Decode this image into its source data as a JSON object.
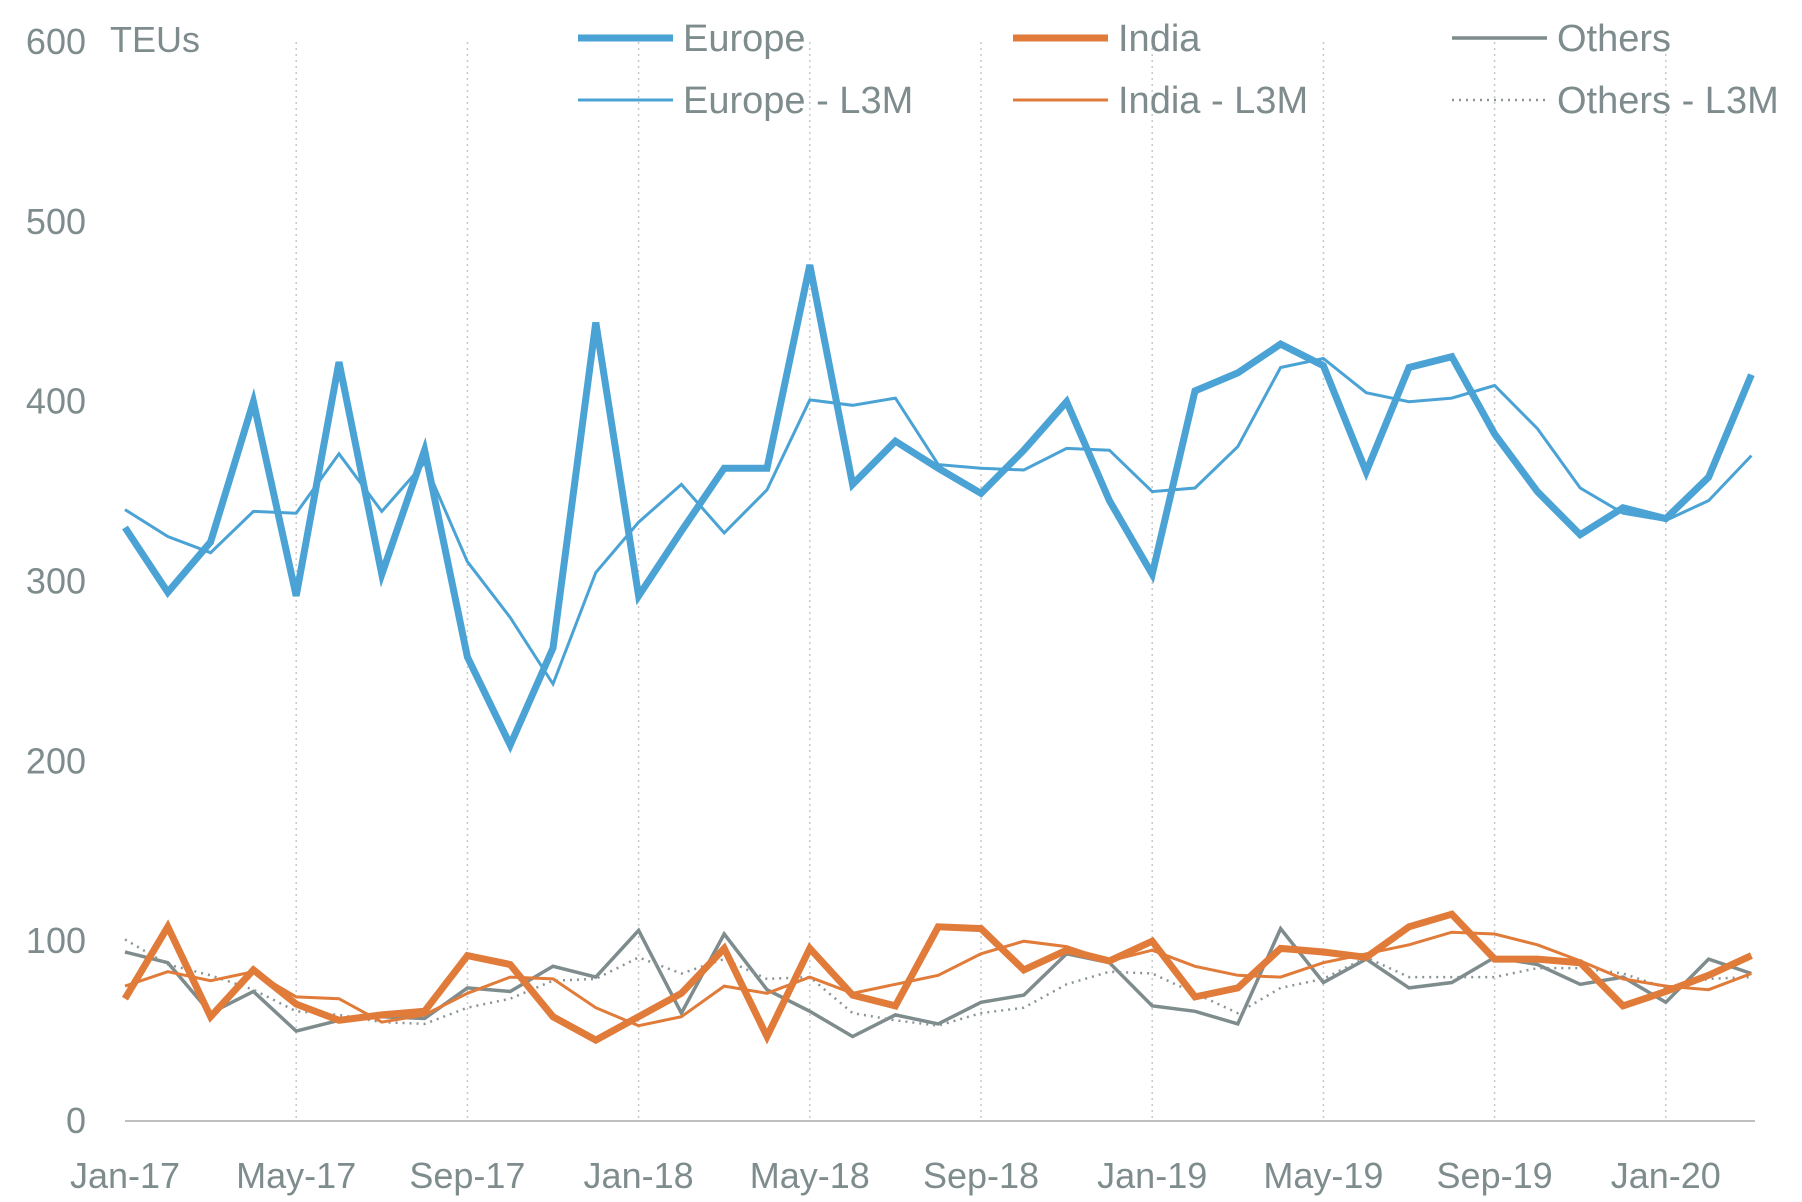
{
  "chart_data": {
    "type": "line",
    "title": "",
    "xlabel": "",
    "ylabel": "TEUs",
    "ylim": [
      0,
      600
    ],
    "yticks": [
      0,
      100,
      200,
      300,
      400,
      500,
      600
    ],
    "x_tick_labels": [
      "Jan-17",
      "May-17",
      "Sep-17",
      "Jan-18",
      "May-18",
      "Sep-18",
      "Jan-19",
      "May-19",
      "Sep-19",
      "Jan-20"
    ],
    "x_tick_every": 4,
    "grid": "vertical dotted at x tick labels",
    "legend_position": "top",
    "x": [
      "Jan-17",
      "Feb-17",
      "Mar-17",
      "Apr-17",
      "May-17",
      "Jun-17",
      "Jul-17",
      "Aug-17",
      "Sep-17",
      "Oct-17",
      "Nov-17",
      "Dec-17",
      "Jan-18",
      "Feb-18",
      "Mar-18",
      "Apr-18",
      "May-18",
      "Jun-18",
      "Jul-18",
      "Aug-18",
      "Sep-18",
      "Oct-18",
      "Nov-18",
      "Dec-18",
      "Jan-19",
      "Feb-19",
      "Mar-19",
      "Apr-19",
      "May-19",
      "Jun-19",
      "Jul-19",
      "Aug-19",
      "Sep-19",
      "Oct-19",
      "Nov-19",
      "Dec-19",
      "Jan-20",
      "Feb-20",
      "Mar-20"
    ],
    "series": [
      {
        "name": "Europe",
        "color": "#4aa3d4",
        "width": 7,
        "dash": "",
        "values": [
          330,
          294,
          322,
          400,
          292,
          422,
          304,
          373,
          258,
          209,
          263,
          444,
          292,
          328,
          363,
          363,
          476,
          354,
          378,
          363,
          349,
          373,
          400,
          345,
          304,
          406,
          416,
          432,
          420,
          361,
          419,
          425,
          382,
          350,
          326,
          341,
          335,
          358,
          415
        ]
      },
      {
        "name": "India",
        "color": "#e07b39",
        "width": 7,
        "dash": "",
        "values": [
          68,
          108,
          58,
          84,
          65,
          56,
          59,
          61,
          92,
          87,
          58,
          45,
          58,
          71,
          96,
          47,
          96,
          70,
          64,
          108,
          107,
          84,
          95,
          89,
          100,
          69,
          74,
          96,
          94,
          91,
          108,
          115,
          90,
          90,
          88,
          64,
          72,
          81,
          92
        ]
      },
      {
        "name": "Others",
        "color": "#7f8c8d",
        "width": 3.5,
        "dash": "",
        "values": [
          94,
          88,
          60,
          72,
          50,
          56,
          58,
          57,
          74,
          72,
          86,
          80,
          106,
          60,
          104,
          73,
          61,
          47,
          59,
          54,
          66,
          70,
          93,
          88,
          64,
          61,
          54,
          107,
          77,
          90,
          74,
          77,
          91,
          87,
          76,
          80,
          66,
          90,
          82
        ]
      },
      {
        "name": "Europe - L3M",
        "color": "#4aa3d4",
        "width": 3,
        "dash": "",
        "values": [
          340,
          325,
          316,
          339,
          338,
          371,
          339,
          366,
          311,
          280,
          243,
          305,
          333,
          354,
          327,
          351,
          401,
          398,
          402,
          365,
          363,
          362,
          374,
          373,
          350,
          352,
          375,
          419,
          424,
          405,
          400,
          402,
          409,
          385,
          352,
          338,
          334,
          345,
          370
        ]
      },
      {
        "name": "India - L3M",
        "color": "#e07b39",
        "width": 3,
        "dash": "",
        "values": [
          75,
          83,
          78,
          83,
          69,
          68,
          55,
          59,
          71,
          80,
          79,
          63,
          53,
          58,
          75,
          71,
          80,
          71,
          76,
          81,
          93,
          100,
          97,
          89,
          95,
          86,
          81,
          80,
          88,
          93,
          98,
          105,
          104,
          98,
          89,
          79,
          75,
          73,
          82
        ]
      },
      {
        "name": "Others - L3M",
        "color": "#8a9497",
        "width": 2.5,
        "dash": "2,5",
        "values": [
          101,
          87,
          81,
          73,
          61,
          59,
          55,
          54,
          63,
          68,
          78,
          79,
          91,
          82,
          90,
          79,
          80,
          60,
          56,
          53,
          60,
          63,
          76,
          83,
          82,
          71,
          60,
          74,
          79,
          91,
          80,
          80,
          80,
          85,
          85,
          82,
          74,
          79,
          80
        ]
      }
    ],
    "legend": [
      {
        "name": "Europe",
        "series": 0
      },
      {
        "name": "India",
        "series": 1
      },
      {
        "name": "Others",
        "series": 2
      },
      {
        "name": "Europe - L3M",
        "series": 3
      },
      {
        "name": "India - L3M",
        "series": 4
      },
      {
        "name": "Others - L3M",
        "series": 5
      }
    ]
  }
}
